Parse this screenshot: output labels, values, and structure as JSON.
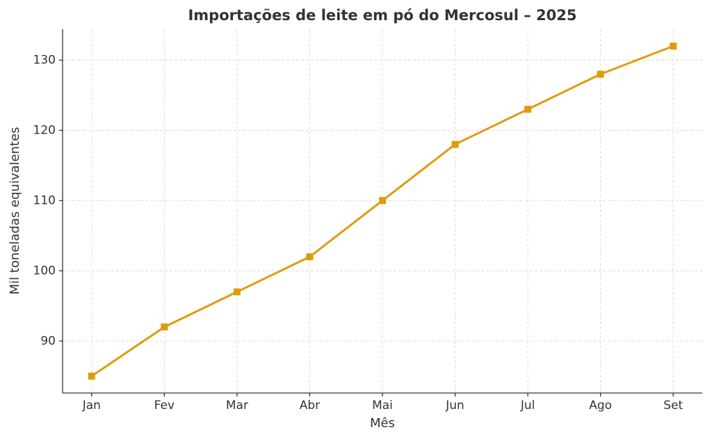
{
  "chart_data": {
    "type": "line",
    "title": "Importações de leite em pó do Mercosul – 2025",
    "x_label": "Mês",
    "y_label": "Mil toneladas equivalentes",
    "categories": [
      "Jan",
      "Fev",
      "Mar",
      "Abr",
      "Mai",
      "Jun",
      "Jul",
      "Ago",
      "Set"
    ],
    "values": [
      85,
      92,
      97,
      102,
      110,
      118,
      123,
      128,
      132
    ],
    "color": "#e09b0c",
    "marker": "square",
    "ylim": [
      82.6,
      134.4
    ],
    "yticks": [
      90,
      100,
      110,
      120,
      130
    ],
    "grid": true
  }
}
